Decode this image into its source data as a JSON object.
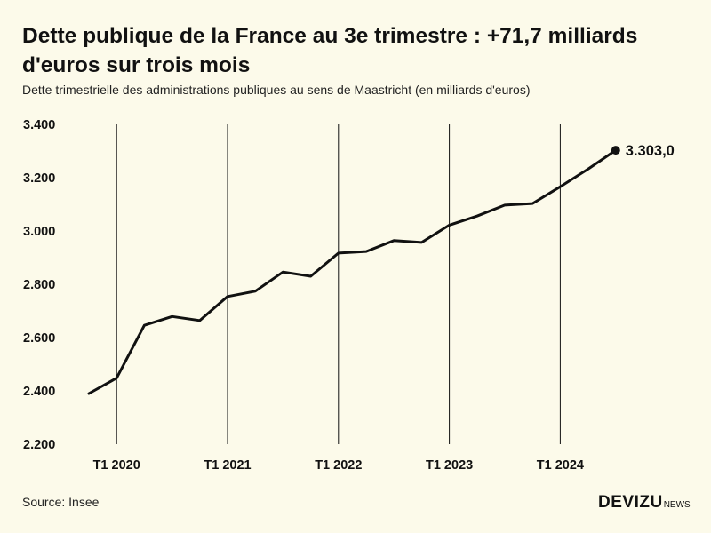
{
  "title": "Dette publique de la France au 3e trimestre : +71,7 milliards d'euros sur trois mois",
  "subtitle": "Dette trimestrielle des administrations publiques au sens de Maastricht (en milliards d'euros)",
  "source": "Source: Insee",
  "brand": {
    "main": "DEVIZU",
    "sub": "NEWS"
  },
  "colors": {
    "background": "#fcfaea",
    "line": "#111111",
    "grid": "#111111"
  },
  "chart_data": {
    "type": "line",
    "title": "Dette publique de la France au 3e trimestre : +71,7 milliards d'euros sur trois mois",
    "xlabel": "",
    "ylabel": "",
    "ylim": [
      2200,
      3400
    ],
    "yticks": [
      2200,
      2400,
      2600,
      2800,
      3000,
      3200,
      3400
    ],
    "ytick_labels": [
      "2.200",
      "2.400",
      "2.600",
      "2.800",
      "3.000",
      "3.200",
      "3.400"
    ],
    "xticks": [
      {
        "index": 1,
        "label": "T1 2020"
      },
      {
        "index": 5,
        "label": "T1 2021"
      },
      {
        "index": 9,
        "label": "T1 2022"
      },
      {
        "index": 13,
        "label": "T1 2023"
      },
      {
        "index": 17,
        "label": "T1 2024"
      }
    ],
    "grid": "vertical",
    "series": [
      {
        "name": "Dette publique",
        "quarters": [
          "T4 2019",
          "T1 2020",
          "T2 2020",
          "T3 2020",
          "T4 2020",
          "T1 2021",
          "T2 2021",
          "T3 2021",
          "T4 2021",
          "T1 2022",
          "T2 2022",
          "T3 2022",
          "T4 2022",
          "T1 2023",
          "T2 2023",
          "T3 2023",
          "T4 2023",
          "T1 2024",
          "T2 2024",
          "T3 2024"
        ],
        "values": [
          2390,
          2448,
          2646,
          2679,
          2664,
          2754,
          2774,
          2846,
          2830,
          2917,
          2923,
          2964,
          2957,
          3022,
          3056,
          3097,
          3103,
          3166,
          3232,
          3303
        ],
        "end_label": "3.303,0"
      }
    ]
  }
}
